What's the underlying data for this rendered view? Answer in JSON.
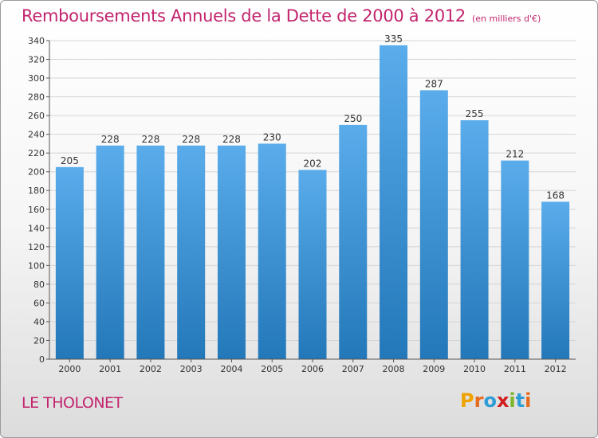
{
  "header": {
    "title": "Remboursements Annuels de la Dette de 2000 à 2012",
    "unit_note": "(en milliers d'€)"
  },
  "footer": {
    "commune": "LE THOLONET",
    "logo_text": "Proxiti"
  },
  "colors": {
    "title": "#c2246d",
    "bar_top": "#5aaceb",
    "bar_bottom": "#2378b9",
    "grid": "#d4d4d4"
  },
  "chart_data": {
    "type": "bar",
    "title": "Remboursements Annuels de la Dette de 2000 à 2012",
    "subtitle": "(en milliers d'€)",
    "categories": [
      "2000",
      "2001",
      "2002",
      "2003",
      "2004",
      "2005",
      "2006",
      "2007",
      "2008",
      "2009",
      "2010",
      "2011",
      "2012"
    ],
    "values": [
      205,
      228,
      228,
      228,
      228,
      230,
      202,
      250,
      335,
      287,
      255,
      212,
      168
    ],
    "data_labels": [
      "205",
      "228",
      "228",
      "228",
      "228",
      "230",
      "202",
      "250",
      "335",
      "287",
      "255",
      "212",
      "168"
    ],
    "ylim": [
      0,
      340
    ],
    "yticks": [
      0,
      20,
      40,
      60,
      80,
      100,
      120,
      140,
      160,
      180,
      200,
      220,
      240,
      260,
      280,
      300,
      320,
      340
    ],
    "xlabel": "",
    "ylabel": "",
    "grid": true,
    "legend": "none"
  }
}
